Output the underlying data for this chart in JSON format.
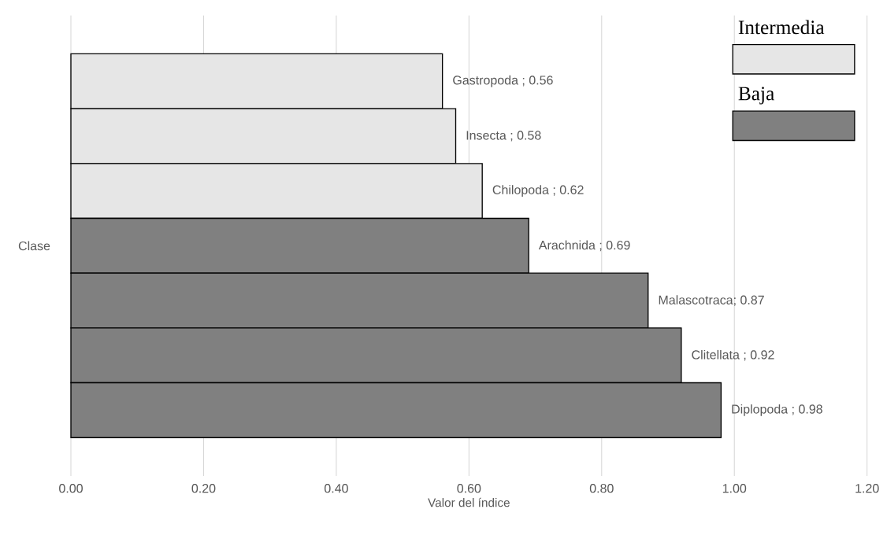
{
  "chart_data": {
    "type": "bar",
    "orientation": "horizontal",
    "ylabel": "Clase",
    "xlabel": "Valor del índice",
    "categories": [
      null,
      null,
      null,
      null,
      null,
      null,
      null
    ],
    "series": [
      {
        "name": "Intermedia",
        "color": "#e6e6e6",
        "values": [
          0.56,
          0.58,
          0.62,
          null,
          null,
          null,
          null
        ],
        "value_labels": [
          "Gastropoda  ; 0.56",
          "Insecta     ; 0.58",
          "Chilopoda   ; 0.62",
          null,
          null,
          null,
          null
        ]
      },
      {
        "name": "Baja",
        "color": "#808080",
        "values": [
          null,
          null,
          null,
          0.69,
          0.87,
          0.92,
          0.98
        ],
        "value_labels": [
          null,
          null,
          null,
          "Arachnida   ; 0.69",
          "Malascotraca; 0.87",
          "Clitellata  ; 0.92",
          "Diplopoda   ; 0.98"
        ]
      }
    ],
    "xlim": [
      0,
      1.2
    ],
    "xticks": [
      {
        "value": 0,
        "label": "0.00"
      },
      {
        "value": 0.2,
        "label": "0.20"
      },
      {
        "value": 0.4,
        "label": "0.40"
      },
      {
        "value": 0.6,
        "label": "0.60"
      },
      {
        "value": 0.8,
        "label": "0.80"
      },
      {
        "value": 1.0,
        "label": "1.00"
      },
      {
        "value": 1.2,
        "label": "1.20"
      }
    ],
    "grid": "x",
    "legend": "top right"
  }
}
